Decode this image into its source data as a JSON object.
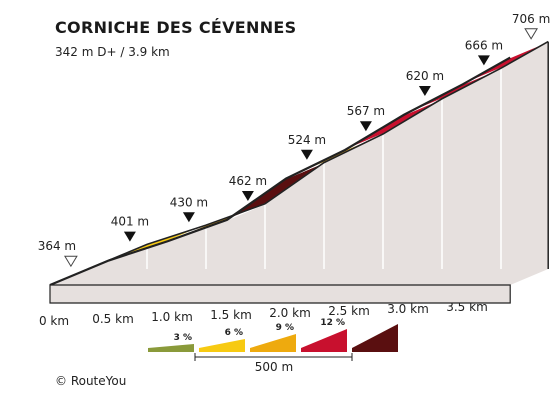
{
  "header": {
    "title": "CORNICHE DES CÉVENNES",
    "subtitle": "342 m D+ / 3.9 km"
  },
  "footer": {
    "credit": "© RouteYou"
  },
  "colors": {
    "grade_3": "#8a9a3a",
    "grade_6": "#f7ca12",
    "grade_9": "#eeaa0e",
    "grade_12": "#c8102e",
    "grade_steep": "#5a0f10",
    "wall": "#e6e0de",
    "base": "#9a9a9a"
  },
  "chart_data": {
    "type": "area",
    "title": "CORNICHE DES CÉVENNES",
    "xlabel": "",
    "ylabel": "",
    "x_unit": "km",
    "y_unit": "m",
    "distance_ticks": [
      "0 km",
      "0.5 km",
      "1.0 km",
      "1.5 km",
      "2.0 km",
      "2.5 km",
      "3.0 km",
      "3.5 km"
    ],
    "elevation_labels": [
      "364 m",
      "401 m",
      "430 m",
      "462 m",
      "524 m",
      "567 m",
      "620 m",
      "666 m",
      "706 m"
    ],
    "segments": [
      {
        "start_km": 0.0,
        "end_km": 0.5,
        "start_m": 364,
        "end_m": 401,
        "grade_class": "grade_9"
      },
      {
        "start_km": 0.5,
        "end_km": 1.0,
        "start_m": 401,
        "end_m": 430,
        "grade_class": "grade_6"
      },
      {
        "start_km": 1.0,
        "end_km": 1.5,
        "start_m": 430,
        "end_m": 462,
        "grade_class": "grade_9"
      },
      {
        "start_km": 1.5,
        "end_km": 2.0,
        "start_m": 462,
        "end_m": 524,
        "grade_class": "grade_steep"
      },
      {
        "start_km": 2.0,
        "end_km": 2.5,
        "start_m": 524,
        "end_m": 567,
        "grade_class": "grade_9"
      },
      {
        "start_km": 2.5,
        "end_km": 3.0,
        "start_m": 567,
        "end_m": 620,
        "grade_class": "grade_12"
      },
      {
        "start_km": 3.0,
        "end_km": 3.5,
        "start_m": 620,
        "end_m": 666,
        "grade_class": "grade_12"
      },
      {
        "start_km": 3.5,
        "end_km": 3.9,
        "start_m": 666,
        "end_m": 706,
        "grade_class": "grade_12"
      }
    ],
    "legend": {
      "position": "bottom",
      "entries": [
        {
          "label": "3 %",
          "grade_class": "grade_3"
        },
        {
          "label": "6 %",
          "grade_class": "grade_6"
        },
        {
          "label": "9 %",
          "grade_class": "grade_9"
        },
        {
          "label": "12 %",
          "grade_class": "grade_12"
        },
        {
          "label": "",
          "grade_class": "grade_steep"
        }
      ],
      "scale_label": "500 m"
    }
  }
}
